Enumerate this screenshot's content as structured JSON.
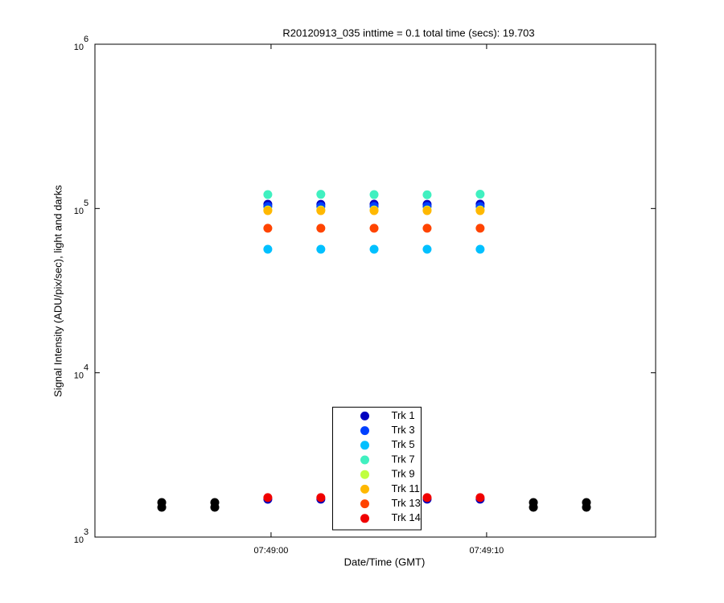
{
  "chart_data": {
    "type": "scatter",
    "title": "R20120913_035 inttime = 0.1 total time (secs): 19.703",
    "xlabel": "Date/Time (GMT)",
    "ylabel": "Signal Intensity (ADU/pix/sec), light and darks",
    "xlim": [
      "07:48:51.83",
      "07:49:17.84"
    ],
    "xticks": [
      "07:49:00",
      "07:49:10"
    ],
    "ylim": [
      1000,
      1000000
    ],
    "yscale": "log",
    "yticks": [
      {
        "value": 1000,
        "label": "10",
        "exponent": "3"
      },
      {
        "value": 10000,
        "label": "10",
        "exponent": "4"
      },
      {
        "value": 100000,
        "label": "10",
        "exponent": "5"
      },
      {
        "value": 1000000,
        "label": "10",
        "exponent": "6"
      }
    ],
    "grid": false,
    "legend": "bottom",
    "series": [
      {
        "name": "Trk 1",
        "color": "#0000c0",
        "x": [
          "07:48:59.85",
          "07:49:02.31",
          "07:49:04.78",
          "07:49:07.24",
          "07:49:09.70",
          "07:48:59.85",
          "07:49:02.31",
          "07:49:04.78",
          "07:49:07.24",
          "07:49:09.70"
        ],
        "values": [
          106200,
          106000,
          106300,
          106100,
          106400,
          1698,
          1700,
          1699,
          1701,
          1700
        ]
      },
      {
        "name": "Trk 3",
        "color": "#0040ff",
        "x": [
          "07:48:59.85",
          "07:49:02.31",
          "07:49:04.78",
          "07:49:07.24",
          "07:49:09.70"
        ],
        "values": [
          103000,
          103000,
          103000,
          103000,
          103000
        ]
      },
      {
        "name": "Trk 5",
        "color": "#00c0ff",
        "x": [
          "07:48:59.85",
          "07:49:02.31",
          "07:49:04.78",
          "07:49:07.24",
          "07:49:09.70"
        ],
        "values": [
          56500,
          56500,
          56500,
          56500,
          56500
        ]
      },
      {
        "name": "Trk 7",
        "color": "#40f0c0",
        "x": [
          "07:48:59.85",
          "07:49:02.31",
          "07:49:04.78",
          "07:49:07.24",
          "07:49:09.70"
        ],
        "values": [
          121600,
          122000,
          121500,
          121200,
          122200
        ]
      },
      {
        "name": "Trk 9",
        "color": "#c0ff40",
        "x": [
          "07:48:59.85",
          "07:49:02.31",
          "07:49:04.78",
          "07:49:07.24",
          "07:49:09.70"
        ],
        "values": [
          98000,
          98000,
          98000,
          98000,
          98000
        ]
      },
      {
        "name": "Trk 11",
        "color": "#ffb800",
        "x": [
          "07:48:59.85",
          "07:49:02.31",
          "07:49:04.78",
          "07:49:07.24",
          "07:49:09.70"
        ],
        "values": [
          97100,
          97100,
          97100,
          97100,
          97100
        ]
      },
      {
        "name": "Trk 13",
        "color": "#ff4400",
        "x": [
          "07:48:59.85",
          "07:49:02.31",
          "07:49:04.78",
          "07:49:07.24",
          "07:49:09.70"
        ],
        "values": [
          75800,
          75800,
          75800,
          75800,
          75800
        ]
      },
      {
        "name": "Trk 14",
        "color": "#f00000",
        "x": [
          "07:48:59.85",
          "07:49:02.31",
          "07:49:04.78",
          "07:49:07.24",
          "07:49:09.70"
        ],
        "values": [
          1740,
          1740,
          1740,
          1740,
          1740
        ]
      },
      {
        "color": "#000000",
        "x": [
          "07:48:54.93",
          "07:48:57.39",
          "07:49:12.17",
          "07:49:14.63"
        ],
        "values": [
          1624,
          1624,
          1624,
          1624
        ]
      },
      {
        "color": "#000000",
        "x": [
          "07:48:54.93",
          "07:48:57.39",
          "07:49:12.17",
          "07:49:14.63"
        ],
        "values": [
          1517,
          1517,
          1517,
          1517
        ]
      }
    ]
  }
}
